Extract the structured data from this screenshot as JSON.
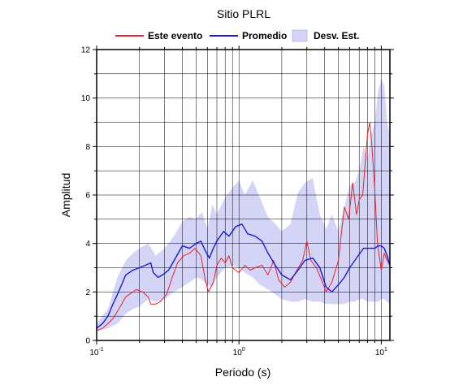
{
  "chart_data": {
    "type": "line",
    "title": "Sitio PLRL",
    "xlabel": "Periodo (s)",
    "ylabel": "Amplitud",
    "x_scale": "log",
    "xlim": [
      0.1,
      11.5
    ],
    "ylim": [
      0,
      12
    ],
    "grid": true,
    "legend_position": "top",
    "x_tick_labels": [
      {
        "base": "10",
        "exp": "-1"
      },
      {
        "base": "10",
        "exp": "0"
      },
      {
        "base": "10",
        "exp": "1"
      }
    ],
    "y_ticks": [
      0,
      2,
      4,
      6,
      8,
      10,
      12
    ],
    "legend": [
      {
        "label": "Este evento",
        "kind": "line",
        "color": "#e8232a"
      },
      {
        "label": "Promedio",
        "kind": "line",
        "color": "#1a1ad6"
      },
      {
        "label": "Desv. Est.",
        "kind": "band",
        "color": "#d4d4f7"
      }
    ],
    "series": [
      {
        "name": "Este evento",
        "color": "#e8232a",
        "x": [
          0.1,
          0.11,
          0.12,
          0.13,
          0.14,
          0.15,
          0.16,
          0.18,
          0.19,
          0.21,
          0.23,
          0.24,
          0.26,
          0.28,
          0.31,
          0.34,
          0.37,
          0.41,
          0.45,
          0.49,
          0.54,
          0.58,
          0.61,
          0.66,
          0.7,
          0.75,
          0.8,
          0.85,
          0.9,
          1.0,
          1.1,
          1.2,
          1.3,
          1.45,
          1.6,
          1.75,
          1.9,
          2.1,
          2.3,
          2.5,
          2.8,
          3.0,
          3.2,
          3.5,
          3.8,
          4.1,
          4.5,
          5.0,
          5.5,
          5.9,
          6.3,
          6.7,
          7.0,
          7.4,
          8.0,
          8.3,
          8.6,
          9.0,
          9.4,
          10.0,
          10.5,
          11.0,
          11.5
        ],
        "y": [
          0.4,
          0.5,
          0.7,
          0.9,
          1.2,
          1.5,
          1.8,
          2.0,
          2.1,
          2.0,
          1.8,
          1.5,
          1.5,
          1.6,
          1.9,
          2.6,
          3.2,
          3.5,
          3.6,
          3.8,
          3.5,
          2.5,
          2.0,
          2.4,
          3.1,
          3.4,
          3.2,
          3.5,
          3.0,
          2.8,
          3.1,
          2.9,
          3.0,
          3.1,
          2.7,
          3.3,
          2.5,
          2.2,
          2.4,
          2.8,
          3.3,
          4.1,
          3.3,
          3.0,
          2.5,
          2.0,
          2.4,
          3.3,
          5.5,
          5.0,
          6.5,
          5.2,
          5.8,
          6.0,
          8.5,
          9.0,
          8.0,
          6.2,
          4.0,
          2.9,
          3.6,
          3.3,
          3.1
        ]
      },
      {
        "name": "Promedio",
        "color": "#1a1ad6",
        "x": [
          0.1,
          0.11,
          0.12,
          0.13,
          0.14,
          0.15,
          0.16,
          0.18,
          0.2,
          0.22,
          0.24,
          0.25,
          0.27,
          0.29,
          0.32,
          0.35,
          0.4,
          0.45,
          0.5,
          0.54,
          0.58,
          0.62,
          0.66,
          0.7,
          0.78,
          0.85,
          0.95,
          1.05,
          1.15,
          1.3,
          1.45,
          1.6,
          1.8,
          2.0,
          2.3,
          2.6,
          2.9,
          3.3,
          3.7,
          4.1,
          4.5,
          5.0,
          5.5,
          6.0,
          6.7,
          7.5,
          8.3,
          9.0,
          9.5,
          10.0,
          10.5,
          11.0,
          11.5
        ],
        "y": [
          0.5,
          0.7,
          1.0,
          1.5,
          1.9,
          2.3,
          2.7,
          2.9,
          3.0,
          3.1,
          3.2,
          2.8,
          2.6,
          2.7,
          2.9,
          3.3,
          3.9,
          3.8,
          4.0,
          4.1,
          3.7,
          3.4,
          3.8,
          4.1,
          4.5,
          4.3,
          4.7,
          4.8,
          4.4,
          4.3,
          4.1,
          3.6,
          3.1,
          2.7,
          2.5,
          2.9,
          3.3,
          3.4,
          3.0,
          2.2,
          2.0,
          2.3,
          2.6,
          3.0,
          3.4,
          3.8,
          3.8,
          3.8,
          3.9,
          3.9,
          3.8,
          3.5,
          3.1
        ]
      }
    ],
    "band": {
      "name": "Desv. Est.",
      "color": "#d4d4f7",
      "x": [
        0.1,
        0.12,
        0.14,
        0.16,
        0.18,
        0.2,
        0.23,
        0.26,
        0.3,
        0.35,
        0.4,
        0.45,
        0.5,
        0.55,
        0.6,
        0.65,
        0.7,
        0.8,
        0.9,
        1.0,
        1.1,
        1.25,
        1.4,
        1.6,
        1.8,
        2.0,
        2.3,
        2.6,
        2.9,
        3.3,
        3.7,
        4.1,
        4.5,
        5.0,
        5.5,
        6.0,
        6.5,
        7.0,
        7.5,
        8.0,
        8.5,
        9.0,
        9.5,
        10.0,
        10.5,
        11.0,
        11.5
      ],
      "upper": [
        0.7,
        1.3,
        2.6,
        3.3,
        3.6,
        3.8,
        4.0,
        3.5,
        3.8,
        4.3,
        4.9,
        5.1,
        5.0,
        5.3,
        4.6,
        5.6,
        5.2,
        5.9,
        6.3,
        6.6,
        6.0,
        6.6,
        5.9,
        5.1,
        4.8,
        4.5,
        4.8,
        6.1,
        6.5,
        6.7,
        5.2,
        4.6,
        5.2,
        4.5,
        5.5,
        6.4,
        6.5,
        7.0,
        8.0,
        7.5,
        8.5,
        9.0,
        10.3,
        10.8,
        10.5,
        9.0,
        8.5
      ],
      "lower": [
        0.4,
        0.5,
        0.7,
        1.1,
        1.3,
        1.4,
        1.7,
        1.6,
        1.7,
        2.0,
        2.2,
        2.4,
        2.6,
        2.5,
        2.3,
        2.2,
        2.6,
        3.0,
        3.1,
        3.0,
        2.8,
        2.6,
        2.3,
        2.1,
        1.9,
        1.7,
        1.6,
        1.6,
        1.7,
        1.6,
        1.6,
        1.5,
        1.5,
        1.5,
        1.5,
        1.6,
        1.6,
        1.7,
        1.7,
        1.6,
        1.6,
        1.6,
        1.6,
        1.7,
        1.7,
        1.6,
        1.5
      ]
    }
  }
}
